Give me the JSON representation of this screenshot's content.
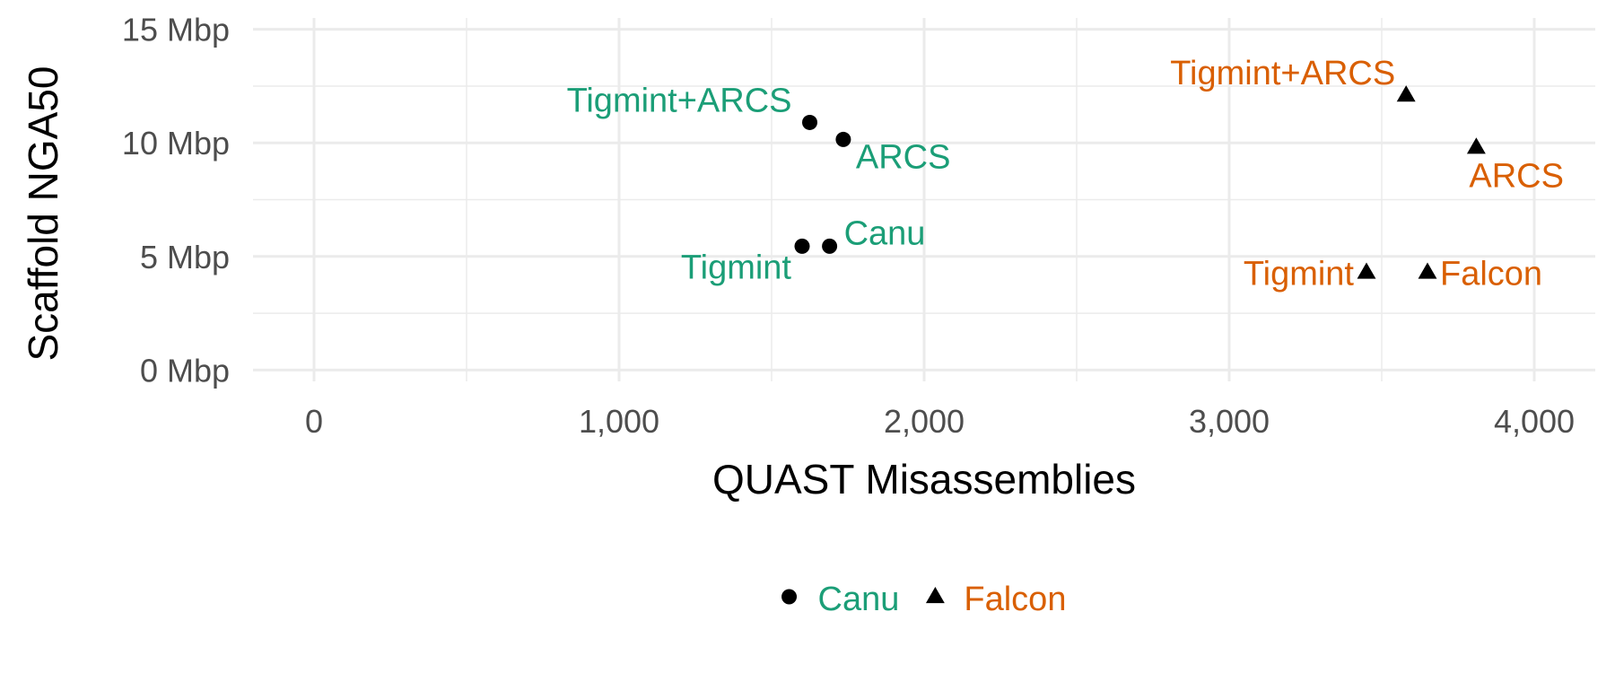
{
  "chart_data": {
    "type": "scatter",
    "title": "",
    "xlabel": "QUAST Misassemblies",
    "ylabel": "Scaffold NGA50",
    "xlim": [
      -200,
      4200
    ],
    "ylim": [
      -0.5,
      15.5
    ],
    "x_ticks": [
      0,
      1000,
      2000,
      3000,
      4000
    ],
    "x_tick_labels": [
      "0",
      "1,000",
      "2,000",
      "3,000",
      "4,000"
    ],
    "y_ticks": [
      0,
      5,
      10,
      15
    ],
    "y_tick_labels": [
      "0 Mbp",
      "5 Mbp",
      "10 Mbp",
      "15 Mbp"
    ],
    "grid": true,
    "legend_position": "bottom",
    "series": [
      {
        "name": "Canu",
        "marker": "circle",
        "color": "#1b9e77",
        "points": [
          {
            "label": "Tigmint+ARCS",
            "x": 1625,
            "y": 10.9
          },
          {
            "label": "ARCS",
            "x": 1735,
            "y": 10.15
          },
          {
            "label": "Canu",
            "x": 1690,
            "y": 5.45
          },
          {
            "label": "Tigmint",
            "x": 1600,
            "y": 5.45
          }
        ]
      },
      {
        "name": "Falcon",
        "marker": "triangle",
        "color": "#d95f02",
        "points": [
          {
            "label": "Tigmint+ARCS",
            "x": 3580,
            "y": 12.1
          },
          {
            "label": "ARCS",
            "x": 3810,
            "y": 9.8
          },
          {
            "label": "Falcon",
            "x": 3650,
            "y": 4.3
          },
          {
            "label": "Tigmint",
            "x": 3450,
            "y": 4.3
          }
        ]
      }
    ]
  }
}
